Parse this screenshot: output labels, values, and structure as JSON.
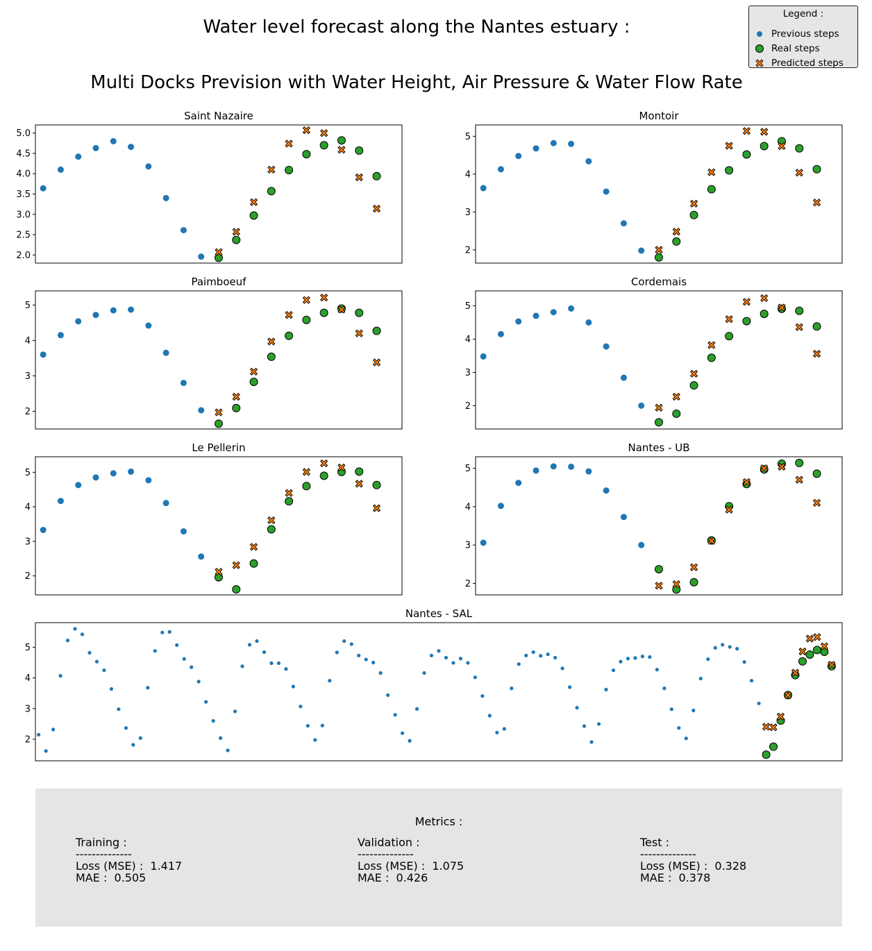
{
  "title_line1": "Water level forecast along the Nantes estuary :",
  "title_line2": "Multi Docks Prevision with Water Height, Air Pressure &  Water Flow Rate",
  "legend": {
    "title": "Legend :",
    "items": [
      {
        "label": "Previous steps",
        "marker": "dot",
        "color": "#1f77b4"
      },
      {
        "label": "Real steps",
        "marker": "circle",
        "color": "#2ca02c"
      },
      {
        "label": "Predicted steps",
        "marker": "x",
        "color": "#ff7f0e"
      }
    ]
  },
  "colors": {
    "previous": "#1f77b4",
    "real": "#2ca02c",
    "predicted": "#ff7f0e"
  },
  "chart_data": [
    {
      "type": "scatter",
      "title": "Saint Nazaire",
      "ylim": [
        1.8,
        5.2
      ],
      "yticks": [
        "2.0",
        "2.5",
        "3.0",
        "3.5",
        "4.0",
        "4.5",
        "5.0"
      ],
      "x_count": 21,
      "previous": [
        3.64,
        4.1,
        4.42,
        4.63,
        4.8,
        4.66,
        4.18,
        3.4,
        2.61,
        1.96
      ],
      "real": [
        null,
        null,
        null,
        null,
        null,
        null,
        null,
        null,
        null,
        null,
        1.93,
        2.37,
        2.97,
        3.57,
        4.09,
        4.48,
        4.7,
        4.82,
        4.57,
        3.94
      ],
      "predicted": [
        null,
        null,
        null,
        null,
        null,
        null,
        null,
        null,
        null,
        null,
        2.07,
        2.57,
        3.3,
        4.1,
        4.74,
        5.07,
        5.0,
        4.59,
        3.91,
        3.14
      ]
    },
    {
      "type": "scatter",
      "title": "Montoir",
      "ylim": [
        1.65,
        5.3
      ],
      "yticks": [
        "2",
        "3",
        "4",
        "5"
      ],
      "x_count": 21,
      "previous": [
        3.63,
        4.13,
        4.48,
        4.68,
        4.82,
        4.8,
        4.34,
        3.54,
        2.7,
        1.98
      ],
      "real": [
        null,
        null,
        null,
        null,
        null,
        null,
        null,
        null,
        null,
        null,
        1.8,
        2.22,
        2.92,
        3.6,
        4.1,
        4.52,
        4.74,
        4.87,
        4.68,
        4.13
      ],
      "predicted": [
        null,
        null,
        null,
        null,
        null,
        null,
        null,
        null,
        null,
        null,
        2.0,
        2.48,
        3.22,
        4.05,
        4.75,
        5.14,
        5.12,
        4.74,
        4.04,
        3.25
      ]
    },
    {
      "type": "scatter",
      "title": "Paimboeuf",
      "ylim": [
        1.5,
        5.4
      ],
      "yticks": [
        "2",
        "3",
        "4",
        "5"
      ],
      "x_count": 21,
      "previous": [
        3.6,
        4.15,
        4.54,
        4.72,
        4.85,
        4.87,
        4.42,
        3.65,
        2.8,
        2.03
      ],
      "real": [
        null,
        null,
        null,
        null,
        null,
        null,
        null,
        null,
        null,
        null,
        1.65,
        2.09,
        2.83,
        3.54,
        4.13,
        4.58,
        4.78,
        4.9,
        4.78,
        4.27
      ],
      "predicted": [
        null,
        null,
        null,
        null,
        null,
        null,
        null,
        null,
        null,
        null,
        1.97,
        2.41,
        3.12,
        3.97,
        4.72,
        5.14,
        5.21,
        4.87,
        4.2,
        3.38
      ]
    },
    {
      "type": "scatter",
      "title": "Cordemais",
      "ylim": [
        1.3,
        5.45
      ],
      "yticks": [
        "2",
        "3",
        "4",
        "5"
      ],
      "x_count": 21,
      "previous": [
        3.48,
        4.15,
        4.53,
        4.7,
        4.81,
        4.92,
        4.5,
        3.78,
        2.84,
        2.0
      ],
      "real": [
        null,
        null,
        null,
        null,
        null,
        null,
        null,
        null,
        null,
        null,
        1.5,
        1.76,
        2.61,
        3.44,
        4.09,
        4.54,
        4.76,
        4.91,
        4.85,
        4.38
      ],
      "predicted": [
        null,
        null,
        null,
        null,
        null,
        null,
        null,
        null,
        null,
        null,
        1.94,
        2.27,
        2.96,
        3.82,
        4.6,
        5.12,
        5.23,
        4.95,
        4.36,
        3.56
      ]
    },
    {
      "type": "scatter",
      "title": "Le Pellerin",
      "ylim": [
        1.45,
        5.45
      ],
      "yticks": [
        "2",
        "3",
        "4",
        "5"
      ],
      "x_count": 21,
      "previous": [
        3.33,
        4.17,
        4.63,
        4.85,
        4.97,
        5.02,
        4.77,
        4.11,
        3.29,
        2.56
      ],
      "real": [
        null,
        null,
        null,
        null,
        null,
        null,
        null,
        null,
        null,
        null,
        1.96,
        1.61,
        2.36,
        3.35,
        4.16,
        4.6,
        4.9,
        5.01,
        5.02,
        4.63
      ],
      "predicted": [
        null,
        null,
        null,
        null,
        null,
        null,
        null,
        null,
        null,
        null,
        2.12,
        2.31,
        2.84,
        3.61,
        4.4,
        5.01,
        5.26,
        5.14,
        4.67,
        3.96
      ]
    },
    {
      "type": "scatter",
      "title": "Nantes - UB",
      "ylim": [
        1.7,
        5.3
      ],
      "yticks": [
        "2",
        "3",
        "4",
        "5"
      ],
      "x_count": 21,
      "previous": [
        3.06,
        4.02,
        4.62,
        4.94,
        5.05,
        5.04,
        4.92,
        4.42,
        3.73,
        3.0
      ],
      "real": [
        null,
        null,
        null,
        null,
        null,
        null,
        null,
        null,
        null,
        null,
        2.37,
        1.84,
        2.03,
        3.12,
        4.01,
        4.59,
        4.97,
        5.12,
        5.14,
        4.86
      ],
      "predicted": [
        null,
        null,
        null,
        null,
        null,
        null,
        null,
        null,
        null,
        null,
        1.94,
        1.98,
        2.42,
        3.11,
        3.92,
        4.64,
        5.0,
        5.04,
        4.7,
        4.1
      ]
    },
    {
      "type": "scatter",
      "title": "Nantes - SAL",
      "ylim": [
        1.3,
        5.8
      ],
      "yticks": [
        "2",
        "3",
        "4",
        "5"
      ],
      "x_count": 111,
      "previous": [
        2.15,
        1.62,
        2.32,
        4.07,
        5.22,
        5.6,
        5.42,
        4.82,
        4.53,
        4.25,
        3.64,
        2.98,
        2.37,
        1.82,
        2.04,
        3.68,
        4.88,
        5.48,
        5.5,
        5.07,
        4.62,
        4.35,
        3.88,
        3.22,
        2.6,
        2.04,
        1.64,
        2.91,
        4.38,
        5.08,
        5.2,
        4.84,
        4.48,
        4.48,
        4.29,
        3.72,
        3.07,
        2.44,
        1.98,
        2.45,
        3.91,
        4.83,
        5.2,
        5.1,
        4.73,
        4.6,
        4.5,
        4.16,
        3.44,
        2.8,
        2.2,
        1.95,
        2.99,
        4.16,
        4.73,
        4.88,
        4.66,
        4.49,
        4.63,
        4.49,
        4.02,
        3.41,
        2.77,
        2.22,
        2.34,
        3.66,
        4.45,
        4.73,
        4.84,
        4.72,
        4.77,
        4.66,
        4.31,
        3.7,
        3.03,
        2.43,
        1.91,
        2.5,
        3.62,
        4.25,
        4.53,
        4.63,
        4.65,
        4.7,
        4.68,
        4.27,
        3.66,
        2.98,
        2.37,
        2.03,
        2.94,
        3.98,
        4.61,
        4.98,
        5.08,
        5.01,
        4.95,
        4.52,
        3.91,
        3.17
      ],
      "real": [
        null,
        null,
        null,
        null,
        null,
        null,
        null,
        null,
        null,
        null,
        null,
        null,
        null,
        null,
        null,
        null,
        null,
        null,
        null,
        null,
        null,
        null,
        null,
        null,
        null,
        null,
        null,
        null,
        null,
        null,
        null,
        null,
        null,
        null,
        null,
        null,
        null,
        null,
        null,
        null,
        null,
        null,
        null,
        null,
        null,
        null,
        null,
        null,
        null,
        null,
        null,
        null,
        null,
        null,
        null,
        null,
        null,
        null,
        null,
        null,
        null,
        null,
        null,
        null,
        null,
        null,
        null,
        null,
        null,
        null,
        null,
        null,
        null,
        null,
        null,
        null,
        null,
        null,
        null,
        null,
        null,
        null,
        null,
        null,
        null,
        null,
        null,
        null,
        null,
        null,
        null,
        null,
        null,
        null,
        null,
        null,
        null,
        null,
        null,
        null,
        1.5,
        1.76,
        2.61,
        3.44,
        4.09,
        4.54,
        4.76,
        4.91,
        4.85,
        4.38
      ],
      "predicted": [
        null,
        null,
        null,
        null,
        null,
        null,
        null,
        null,
        null,
        null,
        null,
        null,
        null,
        null,
        null,
        null,
        null,
        null,
        null,
        null,
        null,
        null,
        null,
        null,
        null,
        null,
        null,
        null,
        null,
        null,
        null,
        null,
        null,
        null,
        null,
        null,
        null,
        null,
        null,
        null,
        null,
        null,
        null,
        null,
        null,
        null,
        null,
        null,
        null,
        null,
        null,
        null,
        null,
        null,
        null,
        null,
        null,
        null,
        null,
        null,
        null,
        null,
        null,
        null,
        null,
        null,
        null,
        null,
        null,
        null,
        null,
        null,
        null,
        null,
        null,
        null,
        null,
        null,
        null,
        null,
        null,
        null,
        null,
        null,
        null,
        null,
        null,
        null,
        null,
        null,
        null,
        null,
        null,
        null,
        null,
        null,
        null,
        null,
        null,
        null,
        2.41,
        2.39,
        2.74,
        3.44,
        4.17,
        4.86,
        5.28,
        5.33,
        5.03,
        4.43
      ]
    }
  ],
  "metrics": {
    "title": "Metrics :",
    "separator": "--------------",
    "sets": [
      {
        "name": "Training :",
        "loss": "Loss (MSE) :  1.417",
        "mae": "MAE :  0.505"
      },
      {
        "name": "Validation :",
        "loss": "Loss (MSE) :  1.075",
        "mae": "MAE :  0.426"
      },
      {
        "name": "Test :",
        "loss": "Loss (MSE) :  0.328",
        "mae": "MAE :  0.378"
      }
    ]
  }
}
